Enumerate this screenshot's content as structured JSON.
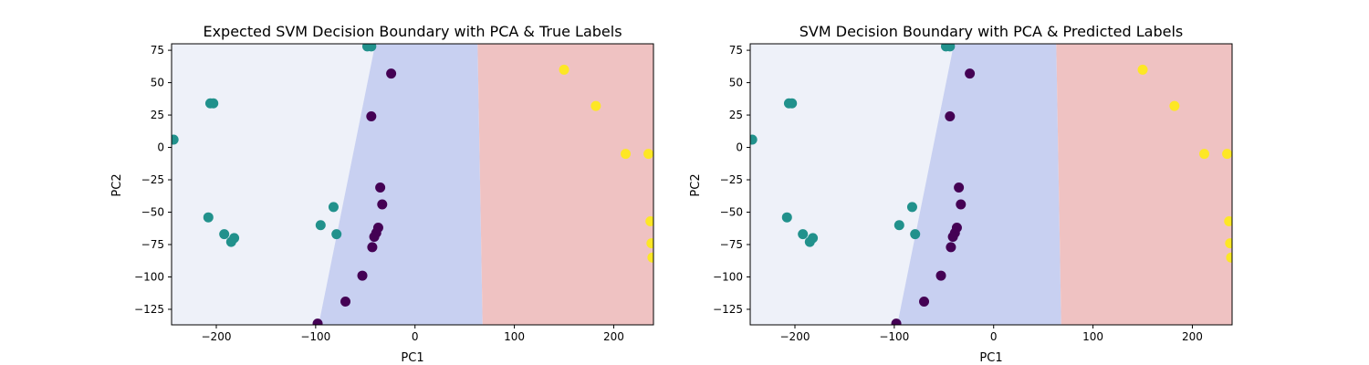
{
  "colors": {
    "region_class0": "#c8d0f1",
    "region_class1": "#eef1f9",
    "region_class2": "#efc2c2",
    "class0": "#440154",
    "class1": "#21918c",
    "class2": "#fde725"
  },
  "chart_data": [
    {
      "type": "scatter",
      "title": "Expected SVM Decision Boundary with PCA & True Labels",
      "xlabel": "PC1",
      "ylabel": "PC2",
      "xlim": [
        -245,
        240
      ],
      "ylim": [
        -137,
        80
      ],
      "xticks": [
        -200,
        -100,
        0,
        100,
        200
      ],
      "yticks": [
        75,
        50,
        25,
        0,
        -25,
        -50,
        -75,
        -100,
        -125
      ],
      "regions": {
        "boundary_left_top": [
          -40,
          80
        ],
        "boundary_left_bottom": [
          -97,
          -137
        ],
        "boundary_right_top": [
          63,
          80
        ],
        "boundary_right_bottom": [
          68,
          -137
        ]
      },
      "points": [
        {
          "x": -243,
          "y": 6,
          "c": 1
        },
        {
          "x": -206,
          "y": 34,
          "c": 1
        },
        {
          "x": -203,
          "y": 34,
          "c": 1
        },
        {
          "x": -208,
          "y": -54,
          "c": 1
        },
        {
          "x": -192,
          "y": -67,
          "c": 1
        },
        {
          "x": -185,
          "y": -73,
          "c": 1
        },
        {
          "x": -182,
          "y": -70,
          "c": 1
        },
        {
          "x": -95,
          "y": -60,
          "c": 1
        },
        {
          "x": -82,
          "y": -46,
          "c": 1
        },
        {
          "x": -79,
          "y": -67,
          "c": 1
        },
        {
          "x": -48,
          "y": 78,
          "c": 1
        },
        {
          "x": -44,
          "y": 78,
          "c": 1
        },
        {
          "x": -24,
          "y": 57,
          "c": 0
        },
        {
          "x": -44,
          "y": 24,
          "c": 0
        },
        {
          "x": -35,
          "y": -31,
          "c": 0
        },
        {
          "x": -33,
          "y": -44,
          "c": 0
        },
        {
          "x": -37,
          "y": -62,
          "c": 0
        },
        {
          "x": -39,
          "y": -66,
          "c": 0
        },
        {
          "x": -41,
          "y": -69,
          "c": 0
        },
        {
          "x": -43,
          "y": -77,
          "c": 0
        },
        {
          "x": -53,
          "y": -99,
          "c": 0
        },
        {
          "x": -70,
          "y": -119,
          "c": 0
        },
        {
          "x": -98,
          "y": -136,
          "c": 0
        },
        {
          "x": 150,
          "y": 60,
          "c": 2
        },
        {
          "x": 182,
          "y": 32,
          "c": 2
        },
        {
          "x": 212,
          "y": -5,
          "c": 2
        },
        {
          "x": 235,
          "y": -5,
          "c": 2
        },
        {
          "x": 237,
          "y": -57,
          "c": 2
        },
        {
          "x": 238,
          "y": -74,
          "c": 2
        },
        {
          "x": 239,
          "y": -85,
          "c": 2
        }
      ]
    },
    {
      "type": "scatter",
      "title": "SVM Decision Boundary with PCA & Predicted Labels",
      "xlabel": "PC1",
      "ylabel": "PC2",
      "xlim": [
        -245,
        240
      ],
      "ylim": [
        -137,
        80
      ],
      "xticks": [
        -200,
        -100,
        0,
        100,
        200
      ],
      "yticks": [
        75,
        50,
        25,
        0,
        -25,
        -50,
        -75,
        -100,
        -125
      ],
      "regions": {
        "boundary_left_top": [
          -40,
          80
        ],
        "boundary_left_bottom": [
          -97,
          -137
        ],
        "boundary_right_top": [
          63,
          80
        ],
        "boundary_right_bottom": [
          68,
          -137
        ]
      },
      "points": [
        {
          "x": -243,
          "y": 6,
          "c": 1
        },
        {
          "x": -206,
          "y": 34,
          "c": 1
        },
        {
          "x": -203,
          "y": 34,
          "c": 1
        },
        {
          "x": -208,
          "y": -54,
          "c": 1
        },
        {
          "x": -192,
          "y": -67,
          "c": 1
        },
        {
          "x": -185,
          "y": -73,
          "c": 1
        },
        {
          "x": -182,
          "y": -70,
          "c": 1
        },
        {
          "x": -95,
          "y": -60,
          "c": 1
        },
        {
          "x": -82,
          "y": -46,
          "c": 1
        },
        {
          "x": -79,
          "y": -67,
          "c": 1
        },
        {
          "x": -48,
          "y": 78,
          "c": 1
        },
        {
          "x": -44,
          "y": 78,
          "c": 1
        },
        {
          "x": -24,
          "y": 57,
          "c": 0
        },
        {
          "x": -44,
          "y": 24,
          "c": 0
        },
        {
          "x": -35,
          "y": -31,
          "c": 0
        },
        {
          "x": -33,
          "y": -44,
          "c": 0
        },
        {
          "x": -37,
          "y": -62,
          "c": 0
        },
        {
          "x": -39,
          "y": -66,
          "c": 0
        },
        {
          "x": -41,
          "y": -69,
          "c": 0
        },
        {
          "x": -43,
          "y": -77,
          "c": 0
        },
        {
          "x": -53,
          "y": -99,
          "c": 0
        },
        {
          "x": -70,
          "y": -119,
          "c": 0
        },
        {
          "x": -98,
          "y": -136,
          "c": 0
        },
        {
          "x": 150,
          "y": 60,
          "c": 2
        },
        {
          "x": 182,
          "y": 32,
          "c": 2
        },
        {
          "x": 212,
          "y": -5,
          "c": 2
        },
        {
          "x": 235,
          "y": -5,
          "c": 2
        },
        {
          "x": 237,
          "y": -57,
          "c": 2
        },
        {
          "x": 238,
          "y": -74,
          "c": 2
        },
        {
          "x": 239,
          "y": -85,
          "c": 2
        }
      ]
    }
  ]
}
